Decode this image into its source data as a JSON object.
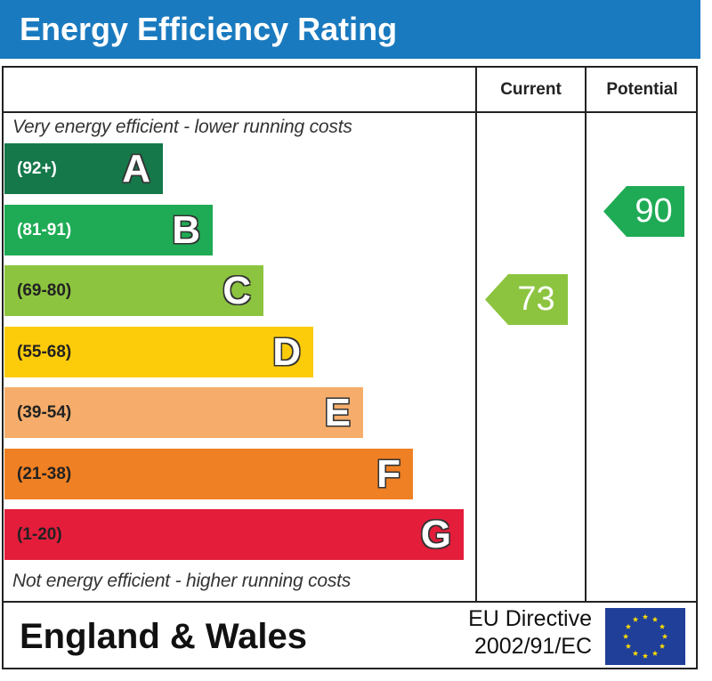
{
  "header": {
    "title": "Energy Efficiency Rating"
  },
  "columns": {
    "current": "Current",
    "potential": "Potential"
  },
  "notes": {
    "top": "Very energy efficient - lower running costs",
    "bottom": "Not energy efficient - higher running costs"
  },
  "footer": {
    "region": "England & Wales",
    "directive_line1": "EU Directive",
    "directive_line2": "2002/91/EC"
  },
  "colors": {
    "title_bg": "#1a7abf",
    "border": "#222222"
  },
  "chart_data": {
    "type": "bar",
    "title": "Energy Efficiency Rating",
    "categories": [
      "A",
      "B",
      "C",
      "D",
      "E",
      "F",
      "G"
    ],
    "bands": [
      {
        "letter": "A",
        "range": "(92+)",
        "min": 92,
        "max": 100,
        "color": "#15784a",
        "text_color": "#ffffff"
      },
      {
        "letter": "B",
        "range": "(81-91)",
        "min": 81,
        "max": 91,
        "color": "#1fab55",
        "text_color": "#ffffff"
      },
      {
        "letter": "C",
        "range": "(69-80)",
        "min": 69,
        "max": 80,
        "color": "#8cc43f",
        "text_color": "#222222"
      },
      {
        "letter": "D",
        "range": "(55-68)",
        "min": 55,
        "max": 68,
        "color": "#fccb0a",
        "text_color": "#222222"
      },
      {
        "letter": "E",
        "range": "(39-54)",
        "min": 39,
        "max": 54,
        "color": "#f6ad6b",
        "text_color": "#222222"
      },
      {
        "letter": "F",
        "range": "(21-38)",
        "min": 21,
        "max": 38,
        "color": "#ef8023",
        "text_color": "#222222"
      },
      {
        "letter": "G",
        "range": "(1-20)",
        "min": 1,
        "max": 20,
        "color": "#e41d3b",
        "text_color": "#222222"
      }
    ],
    "series": [
      {
        "name": "Current",
        "value": 73,
        "band": "C",
        "color": "#8cc43f"
      },
      {
        "name": "Potential",
        "value": 90,
        "band": "B",
        "color": "#1fab55"
      }
    ]
  }
}
